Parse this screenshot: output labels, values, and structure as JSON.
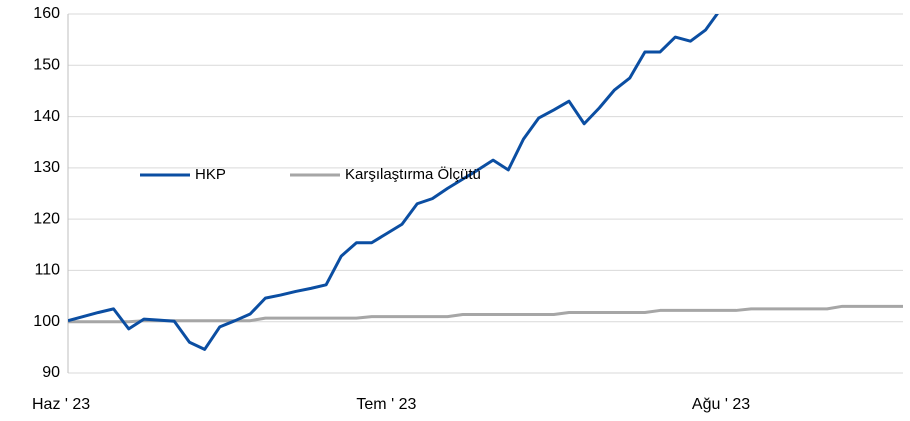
{
  "chart_data": {
    "type": "line",
    "x": [
      0,
      1,
      2,
      3,
      4,
      5,
      6,
      7,
      8,
      9,
      10,
      11,
      12,
      13,
      14,
      15,
      16,
      17,
      18,
      19,
      20,
      21,
      22,
      23,
      24,
      25,
      26,
      27,
      28,
      29,
      30,
      31,
      32,
      33,
      34,
      35,
      36,
      37,
      38,
      39,
      40,
      41,
      42,
      43,
      44,
      45,
      46,
      47,
      48,
      49,
      50,
      51,
      52,
      53,
      54,
      55
    ],
    "series": [
      {
        "name": "HKP",
        "color": "#0b4ea2",
        "values": [
          100.2,
          101,
          101.8,
          102.5,
          98.6,
          100.5,
          100.3,
          100.1,
          96,
          94.6,
          99,
          100.2,
          101.5,
          104.6,
          105.2,
          105.9,
          106.5,
          107.2,
          112.8,
          115.4,
          115.4,
          117.2,
          119,
          123,
          124,
          126,
          127.8,
          129.6,
          131.5,
          129.6,
          135.6,
          139.7,
          141.3,
          143,
          138.6,
          141.7,
          145.2,
          147.5,
          152.6,
          152.6,
          155.5,
          154.7,
          156.9,
          161,
          null,
          null,
          null,
          null,
          null,
          null,
          null,
          null,
          null,
          null,
          null,
          null
        ]
      },
      {
        "name": "Karşılaştırma Ölçütü",
        "color": "#a6a6a6",
        "values": [
          100,
          100,
          100,
          100,
          100,
          100.2,
          100.2,
          100.2,
          100.2,
          100.2,
          100.2,
          100.2,
          100.2,
          100.7,
          100.7,
          100.7,
          100.7,
          100.7,
          100.7,
          100.7,
          101,
          101,
          101,
          101,
          101,
          101,
          101.4,
          101.4,
          101.4,
          101.4,
          101.4,
          101.4,
          101.4,
          101.8,
          101.8,
          101.8,
          101.8,
          101.8,
          101.8,
          102.2,
          102.2,
          102.2,
          102.2,
          102.2,
          102.2,
          102.5,
          102.5,
          102.5,
          102.5,
          102.5,
          102.5,
          103,
          103,
          103,
          103,
          103
        ]
      }
    ],
    "xlim": [
      0,
      55
    ],
    "xticks": [
      {
        "value": 0,
        "label": "Haz ' 23"
      },
      {
        "value": 21.5,
        "label": "Tem ' 23"
      },
      {
        "value": 43.6,
        "label": "Ağu ' 23"
      }
    ],
    "ylim": [
      90,
      160
    ],
    "yticks": [
      90,
      100,
      110,
      120,
      130,
      140,
      150,
      160
    ],
    "grid": true
  }
}
